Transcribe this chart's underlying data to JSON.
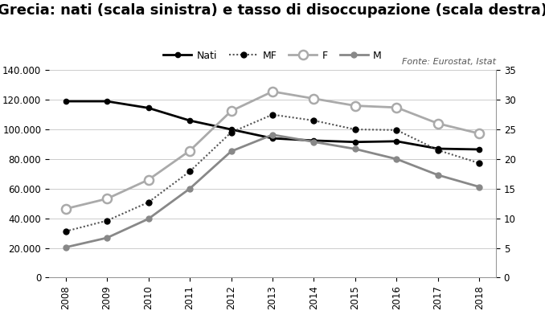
{
  "title": "Grecia: nati (scala sinistra) e tasso di disoccupazione (scala destra)",
  "years": [
    2008,
    2009,
    2010,
    2011,
    2012,
    2013,
    2014,
    2015,
    2016,
    2017,
    2018
  ],
  "nati": [
    119000,
    119000,
    114500,
    106000,
    100000,
    94000,
    92500,
    91500,
    92000,
    87000,
    86500
  ],
  "MF": [
    7.8,
    9.6,
    12.7,
    17.9,
    24.5,
    27.5,
    26.5,
    25.0,
    24.9,
    21.5,
    19.3
  ],
  "F": [
    11.6,
    13.3,
    16.5,
    21.4,
    28.1,
    31.4,
    30.2,
    29.0,
    28.7,
    26.0,
    24.3
  ],
  "M": [
    5.1,
    6.7,
    9.9,
    15.0,
    21.3,
    24.1,
    22.9,
    21.7,
    20.0,
    17.3,
    15.3
  ],
  "source": "Fonte: Eurostat, Istat",
  "ylim_left": [
    0,
    140000
  ],
  "ylim_right": [
    0,
    35
  ],
  "left_ticks": [
    0,
    20000,
    40000,
    60000,
    80000,
    100000,
    120000,
    140000
  ],
  "right_ticks": [
    0,
    5,
    10,
    15,
    20,
    25,
    30,
    35
  ],
  "background_color": "#ffffff",
  "nati_color": "#000000",
  "MF_color": "#555555",
  "F_color": "#aaaaaa",
  "M_color": "#888888",
  "grid_color": "#cccccc",
  "title_fontsize": 13,
  "tick_fontsize": 8.5,
  "legend_fontsize": 9,
  "source_fontsize": 8
}
